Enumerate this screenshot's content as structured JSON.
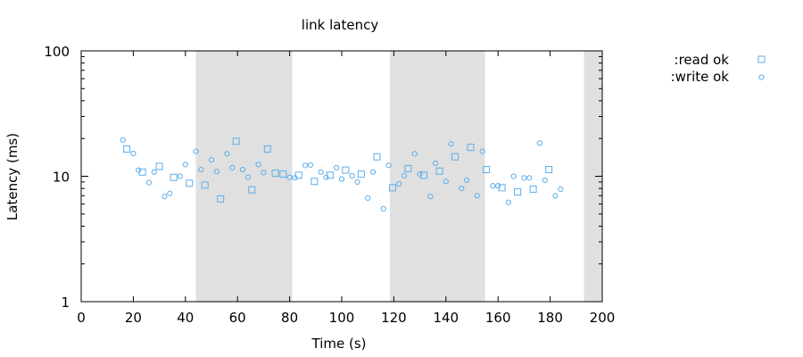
{
  "chart_data": {
    "type": "scatter",
    "title": "link latency",
    "xlabel": "Time (s)",
    "ylabel": "Latency (ms)",
    "xlim": [
      0,
      200
    ],
    "ylim": [
      1,
      100
    ],
    "yscale": "log",
    "grid": false,
    "legend_position": "top-right, outside plot",
    "marker_color": "#5aaeeb",
    "shade_color": "#e0e0e0",
    "x_ticks": [
      0,
      20,
      40,
      60,
      80,
      100,
      120,
      140,
      160,
      180,
      200
    ],
    "x_tick_labels": [
      "0",
      "20",
      "40",
      "60",
      "80",
      "100",
      "120",
      "140",
      "160",
      "180",
      "200"
    ],
    "y_ticks": [
      1,
      10,
      100
    ],
    "y_tick_labels": [
      "1",
      "10",
      "100"
    ],
    "shaded_intervals": [
      [
        44,
        81
      ],
      [
        118.5,
        155
      ],
      [
        193,
        200
      ]
    ],
    "series": [
      {
        "name": ":read ok",
        "marker": "square",
        "points": [
          [
            17.5,
            16.5
          ],
          [
            23.5,
            10.8
          ],
          [
            30,
            12
          ],
          [
            35.5,
            9.8
          ],
          [
            41.5,
            8.8
          ],
          [
            47.5,
            8.5
          ],
          [
            53.5,
            6.6
          ],
          [
            59.5,
            19
          ],
          [
            65.5,
            7.8
          ],
          [
            71.5,
            16.5
          ],
          [
            74.5,
            10.6
          ],
          [
            77.5,
            10.4
          ],
          [
            83.5,
            10.2
          ],
          [
            89.5,
            9.1
          ],
          [
            95.5,
            10.2
          ],
          [
            101.5,
            11.2
          ],
          [
            107.5,
            10.4
          ],
          [
            113.5,
            14.3
          ],
          [
            119.5,
            8.1
          ],
          [
            125.5,
            11.5
          ],
          [
            131.5,
            10.2
          ],
          [
            137.5,
            11
          ],
          [
            143.5,
            14.3
          ],
          [
            149.5,
            17
          ],
          [
            155.5,
            11.3
          ],
          [
            161.5,
            8.1
          ],
          [
            167.5,
            7.5
          ],
          [
            173.5,
            7.9
          ],
          [
            179.5,
            11.3
          ]
        ]
      },
      {
        "name": ":write ok",
        "marker": "circle",
        "points": [
          [
            16,
            19.5
          ],
          [
            20,
            15.2
          ],
          [
            22,
            11.2
          ],
          [
            26,
            8.9
          ],
          [
            28,
            10.8
          ],
          [
            32,
            6.9
          ],
          [
            34,
            7.3
          ],
          [
            38,
            10
          ],
          [
            40,
            12.4
          ],
          [
            44,
            15.8
          ],
          [
            46,
            11.3
          ],
          [
            50,
            13.5
          ],
          [
            52,
            10.9
          ],
          [
            56,
            15.1
          ],
          [
            58,
            11.7
          ],
          [
            62,
            11.3
          ],
          [
            64,
            9.8
          ],
          [
            68,
            12.4
          ],
          [
            70,
            10.7
          ],
          [
            80,
            9.8
          ],
          [
            82,
            9.7
          ],
          [
            86,
            12.2
          ],
          [
            88,
            12.3
          ],
          [
            92,
            10.8
          ],
          [
            94,
            9.8
          ],
          [
            98,
            11.7
          ],
          [
            100,
            9.5
          ],
          [
            104,
            10.1
          ],
          [
            106,
            9
          ],
          [
            110,
            6.7
          ],
          [
            112,
            10.8
          ],
          [
            116,
            5.5
          ],
          [
            118,
            12.2
          ],
          [
            122,
            8.7
          ],
          [
            124,
            10.1
          ],
          [
            128,
            15.1
          ],
          [
            130,
            10.4
          ],
          [
            134,
            6.9
          ],
          [
            136,
            12.7
          ],
          [
            140,
            9.1
          ],
          [
            142,
            18.1
          ],
          [
            146,
            8
          ],
          [
            148,
            9.3
          ],
          [
            152,
            7
          ],
          [
            154,
            15.8
          ],
          [
            158,
            8.4
          ],
          [
            160,
            8.4
          ],
          [
            164,
            6.2
          ],
          [
            166,
            10
          ],
          [
            170,
            9.7
          ],
          [
            172,
            9.7
          ],
          [
            176,
            18.4
          ],
          [
            178,
            9.3
          ],
          [
            182,
            7
          ],
          [
            184,
            7.9
          ]
        ]
      }
    ]
  }
}
